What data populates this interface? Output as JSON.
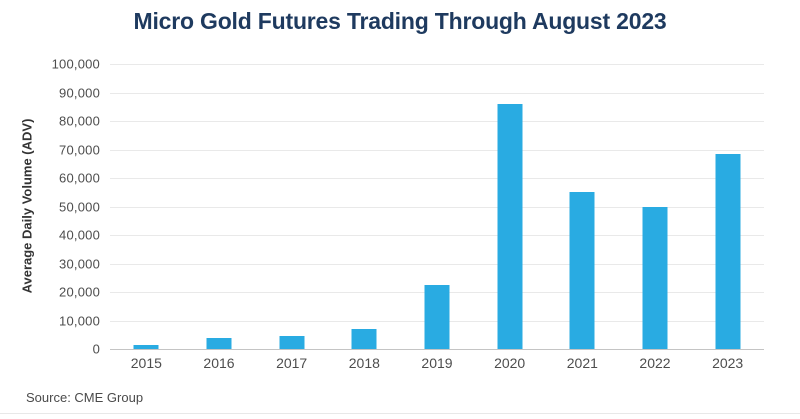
{
  "chart": {
    "title": "Micro Gold Futures Trading Through August 2023",
    "ylabel": "Average Daily Volume (ADV)",
    "source": "Source: CME Group"
  },
  "chart_data": {
    "type": "bar",
    "title": "Micro Gold Futures Trading Through August 2023",
    "xlabel": "",
    "ylabel": "Average Daily Volume (ADV)",
    "source": "Source: CME Group",
    "categories": [
      "2015",
      "2016",
      "2017",
      "2018",
      "2019",
      "2020",
      "2021",
      "2022",
      "2023"
    ],
    "values": [
      1500,
      4000,
      4500,
      7000,
      22500,
      86000,
      55000,
      50000,
      68500
    ],
    "ylim": [
      0,
      100000
    ],
    "ytick_step": 10000,
    "grid": true,
    "legend": "none",
    "colors": {
      "bar": "#29ABE2",
      "title": "#1E3A5F",
      "tick_label": "#4D4D4D",
      "gridline": "#E9E9E9",
      "axis_line": "#C4C4C4",
      "background": "#FFFFFF"
    }
  }
}
